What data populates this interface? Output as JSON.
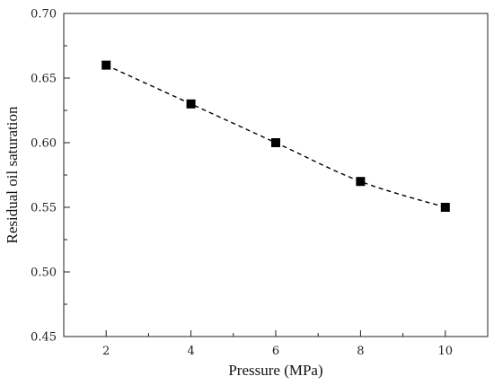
{
  "chart_data": {
    "type": "scatter",
    "title": "",
    "xlabel": "Pressure (MPa)",
    "ylabel": "Residual oil saturation",
    "xlim": [
      1,
      11
    ],
    "ylim": [
      0.45,
      0.7
    ],
    "xticks": [
      2,
      4,
      6,
      8,
      10
    ],
    "yticks": [
      0.45,
      0.5,
      0.55,
      0.6,
      0.65,
      0.7
    ],
    "ytick_labels": [
      "0.45",
      "0.50",
      "0.55",
      "0.60",
      "0.65",
      "0.70"
    ],
    "grid": false,
    "trend_line": "dashed",
    "marker": "square",
    "colors": {
      "marker": "#000000",
      "line": "#000000",
      "axis": "#222222"
    },
    "series": [
      {
        "x": [
          2,
          4,
          6,
          8,
          10
        ],
        "y": [
          0.66,
          0.63,
          0.6,
          0.57,
          0.55
        ]
      }
    ]
  }
}
